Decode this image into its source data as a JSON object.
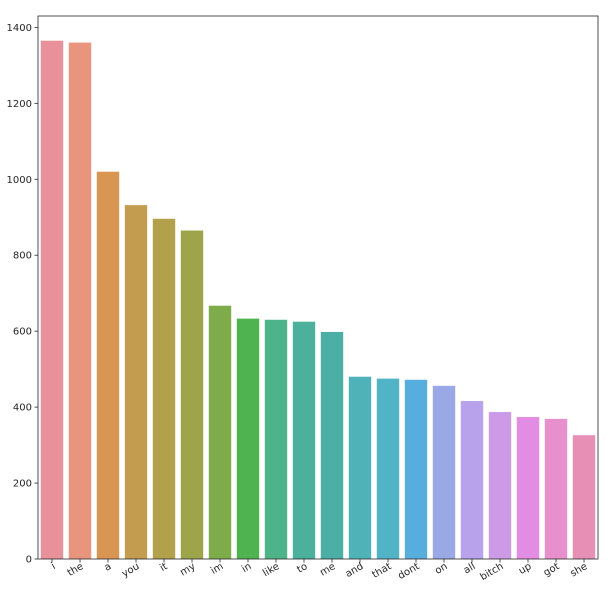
{
  "chart_data": {
    "type": "bar",
    "title": "",
    "xlabel": "",
    "ylabel": "",
    "categories": [
      "i",
      "the",
      "a",
      "you",
      "it",
      "my",
      "im",
      "in",
      "like",
      "to",
      "me",
      "and",
      "that",
      "dont",
      "on",
      "all",
      "bitch",
      "up",
      "got",
      "she"
    ],
    "values": [
      1365,
      1360,
      1020,
      932,
      896,
      865,
      667,
      633,
      630,
      625,
      598,
      480,
      475,
      472,
      456,
      416,
      387,
      374,
      369,
      326
    ],
    "colors": [
      "#e8919b",
      "#e9957e",
      "#d99652",
      "#c49c50",
      "#b2a04a",
      "#9da44a",
      "#7fac4b",
      "#4fb350",
      "#4db48a",
      "#4bb19c",
      "#4cafa6",
      "#4eb2b8",
      "#50b3c6",
      "#57aede",
      "#9aa8e5",
      "#b8a2eb",
      "#cc9ae6",
      "#e38ce4",
      "#e88fcd",
      "#e88fb6"
    ],
    "ylim": [
      0,
      1430
    ],
    "yticks": [
      0,
      200,
      400,
      600,
      800,
      1000,
      1200,
      1400
    ],
    "grid": false,
    "legend": "none"
  }
}
